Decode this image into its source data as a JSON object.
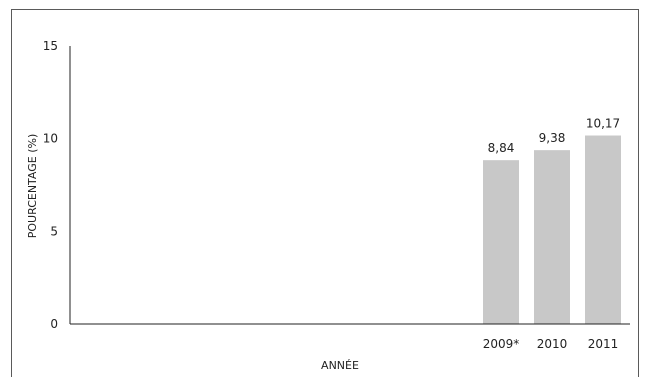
{
  "chart_data": {
    "type": "bar",
    "title": "",
    "xlabel": "ANNÉE",
    "ylabel": "POURCENTAGE (%)",
    "categories": [
      "2009*",
      "2010",
      "2011"
    ],
    "values": [
      8.84,
      9.38,
      10.17
    ],
    "value_labels": [
      "8,84",
      "9,38",
      "10,17"
    ],
    "ylim": [
      0,
      15
    ],
    "yticks": [
      0,
      5,
      10,
      15
    ],
    "ytick_labels": [
      "0",
      "5",
      "10",
      "15"
    ],
    "grid": false,
    "bar_color": "#c8c8c8",
    "axis_color": "#222222"
  }
}
